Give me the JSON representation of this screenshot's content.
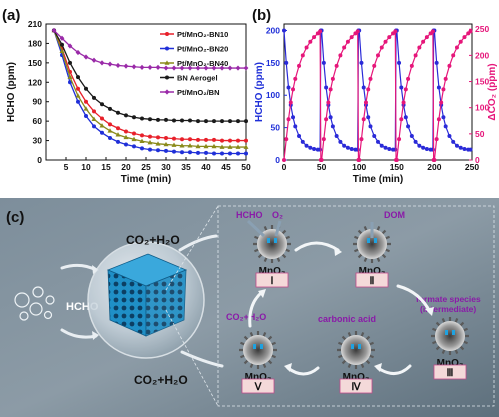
{
  "panels": {
    "a": "(a)",
    "b": "(b)",
    "c": "(c)"
  },
  "chart_data": [
    {
      "type": "line",
      "xlabel": "Time (min)",
      "ylabel": "HCHO (ppm)",
      "xlim": [
        0,
        50
      ],
      "ylim": [
        0,
        210
      ],
      "xticks": [
        "5",
        "10",
        "15",
        "20",
        "25",
        "30",
        "35",
        "40",
        "45",
        "50"
      ],
      "yticks": [
        "0",
        "30",
        "60",
        "90",
        "120",
        "150",
        "180",
        "210"
      ],
      "legend_position": "top-right",
      "series": [
        {
          "name": "Pt/MnO₂-BN10",
          "color": "#e8202a",
          "marker": "circle",
          "x": [
            2,
            4,
            6,
            8,
            10,
            12,
            14,
            16,
            18,
            20,
            22,
            24,
            26,
            28,
            30,
            32,
            34,
            36,
            38,
            40,
            42,
            44,
            46,
            48,
            50
          ],
          "y": [
            200,
            172,
            136,
            110,
            90,
            75,
            64,
            55,
            49,
            44,
            41,
            38,
            36,
            35,
            34,
            33,
            32,
            32,
            31,
            31,
            31,
            30,
            30,
            30,
            30
          ]
        },
        {
          "name": "Pt/MnO₂-BN20",
          "color": "#1f2fd8",
          "marker": "circle",
          "x": [
            2,
            4,
            6,
            8,
            10,
            12,
            14,
            16,
            18,
            20,
            22,
            24,
            26,
            28,
            30,
            32,
            34,
            36,
            38,
            40,
            42,
            44,
            46,
            48,
            50
          ],
          "y": [
            200,
            162,
            120,
            90,
            68,
            52,
            42,
            34,
            28,
            24,
            21,
            18,
            16,
            15,
            14,
            13,
            12,
            12,
            11,
            11,
            10,
            10,
            10,
            10,
            10
          ]
        },
        {
          "name": "Pt/MnO₂-BN40",
          "color": "#8a8a1a",
          "marker": "triangle",
          "x": [
            2,
            4,
            6,
            8,
            10,
            12,
            14,
            16,
            18,
            20,
            22,
            24,
            26,
            28,
            30,
            32,
            34,
            36,
            38,
            40,
            42,
            44,
            46,
            48,
            50
          ],
          "y": [
            200,
            168,
            128,
            99,
            79,
            63,
            53,
            45,
            39,
            35,
            32,
            29,
            27,
            25,
            24,
            23,
            22,
            22,
            21,
            21,
            21,
            20,
            20,
            20,
            20
          ]
        },
        {
          "name": "BN Aerogel",
          "color": "#1a1a1a",
          "marker": "circle",
          "x": [
            2,
            4,
            6,
            8,
            10,
            12,
            14,
            16,
            18,
            20,
            22,
            24,
            26,
            28,
            30,
            32,
            34,
            36,
            38,
            40,
            42,
            44,
            46,
            48,
            50
          ],
          "y": [
            200,
            178,
            150,
            128,
            110,
            96,
            86,
            79,
            73,
            69,
            66,
            64,
            63,
            62,
            62,
            61,
            61,
            61,
            60,
            60,
            60,
            60,
            60,
            60,
            60
          ]
        },
        {
          "name": "Pt/MnO₂/BN",
          "color": "#9a2aa8",
          "marker": "diamond",
          "x": [
            2,
            4,
            6,
            8,
            10,
            12,
            14,
            16,
            18,
            20,
            22,
            24,
            26,
            28,
            30,
            32,
            34,
            36,
            38,
            40,
            42,
            44,
            46,
            48,
            50
          ],
          "y": [
            200,
            188,
            176,
            166,
            159,
            154,
            150,
            148,
            146,
            145,
            144,
            143,
            143,
            143,
            142,
            142,
            142,
            142,
            142,
            142,
            142,
            142,
            142,
            142,
            142
          ]
        }
      ]
    },
    {
      "type": "line",
      "xlabel": "Time (min)",
      "ylabel": "HCHO (ppm)",
      "y2label": "ΔCO₂ (ppm)",
      "xlim": [
        0,
        250
      ],
      "ylim": [
        0,
        210
      ],
      "y2lim": [
        0,
        260
      ],
      "xticks": [
        "0",
        "50",
        "100",
        "150",
        "200",
        "250"
      ],
      "yticks": [
        "0",
        "50",
        "100",
        "150",
        "200"
      ],
      "y2ticks": [
        "0",
        "50",
        "100",
        "150",
        "200",
        "250"
      ],
      "series": [
        {
          "color": "#2a2ad8",
          "axis": "left",
          "marker": "circle",
          "x": [
            0,
            3,
            6,
            9,
            12,
            15,
            20,
            25,
            30,
            35,
            40,
            45,
            48,
            49,
            50,
            53,
            56,
            59,
            62,
            65,
            70,
            75,
            80,
            85,
            90,
            95,
            98,
            99,
            100,
            103,
            106,
            109,
            112,
            115,
            120,
            125,
            130,
            135,
            140,
            145,
            148,
            149,
            150,
            153,
            156,
            159,
            162,
            165,
            170,
            175,
            180,
            185,
            190,
            195,
            198,
            199,
            200,
            203,
            206,
            209,
            212,
            215,
            220,
            225,
            230,
            235,
            240,
            245,
            248
          ],
          "y": [
            200,
            150,
            112,
            85,
            66,
            52,
            37,
            28,
            22,
            19,
            17,
            16,
            16,
            200,
            200,
            150,
            112,
            85,
            66,
            52,
            37,
            28,
            22,
            19,
            17,
            16,
            16,
            200,
            200,
            150,
            112,
            85,
            66,
            52,
            37,
            28,
            22,
            19,
            17,
            16,
            16,
            200,
            200,
            150,
            112,
            85,
            66,
            52,
            37,
            28,
            22,
            19,
            17,
            16,
            16,
            200,
            200,
            150,
            112,
            85,
            66,
            52,
            37,
            28,
            22,
            19,
            17,
            16,
            16
          ]
        },
        {
          "color": "#e6167a",
          "axis": "right",
          "marker": "circle",
          "x": [
            0,
            3,
            6,
            9,
            12,
            15,
            20,
            25,
            30,
            35,
            40,
            45,
            48,
            49,
            50,
            53,
            56,
            59,
            62,
            65,
            70,
            75,
            80,
            85,
            90,
            95,
            98,
            99,
            100,
            103,
            106,
            109,
            112,
            115,
            120,
            125,
            130,
            135,
            140,
            145,
            148,
            149,
            150,
            153,
            156,
            159,
            162,
            165,
            170,
            175,
            180,
            185,
            190,
            195,
            198,
            199,
            200,
            203,
            206,
            209,
            212,
            215,
            220,
            225,
            230,
            235,
            240,
            245,
            248
          ],
          "y": [
            0,
            40,
            78,
            110,
            135,
            155,
            180,
            200,
            215,
            226,
            235,
            242,
            246,
            0,
            0,
            40,
            78,
            110,
            135,
            155,
            180,
            200,
            215,
            226,
            235,
            242,
            246,
            0,
            0,
            40,
            78,
            110,
            135,
            155,
            180,
            200,
            215,
            226,
            235,
            242,
            246,
            0,
            0,
            40,
            78,
            110,
            135,
            155,
            180,
            200,
            215,
            226,
            235,
            242,
            246,
            0,
            0,
            40,
            78,
            110,
            135,
            155,
            180,
            200,
            215,
            226,
            235,
            242,
            246
          ]
        }
      ]
    }
  ],
  "schematic": {
    "left_reactant": "HCHO",
    "product_top": "CO₂+H₂O",
    "product_bottom": "CO₂+H₂O",
    "steps": [
      {
        "numeral": "Ⅰ",
        "label": "MnO₂",
        "note_1": "HCHO",
        "note_2": "O₂"
      },
      {
        "numeral": "Ⅱ",
        "label": "MnO₂",
        "note_1": "DOM"
      },
      {
        "numeral": "Ⅲ",
        "label": "MnO₂",
        "note_1": "formate species",
        "note_2": "(intermediate)"
      },
      {
        "numeral": "Ⅳ",
        "label": "MnO₂",
        "note_1": "carbonic acid"
      },
      {
        "numeral": "Ⅴ",
        "label": "MnO₂",
        "note_1": "CO₂+H₂O"
      }
    ],
    "colors": {
      "bg": "#6b7e8c",
      "cube": "#1e8fc4",
      "label_purple": "#8a1aa8",
      "numeral_box": "#f4d9d9"
    }
  }
}
